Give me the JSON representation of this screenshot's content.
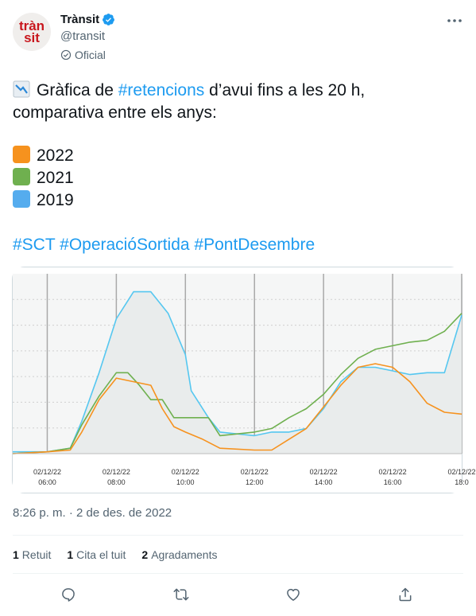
{
  "author": {
    "avatar_text_line1": "tràn",
    "avatar_text_line2": "sit",
    "display_name": "Trànsit",
    "handle": "@transit",
    "badge": "Oficial"
  },
  "tweet": {
    "line1_prefix": "Gràfica de ",
    "line1_hashtag": "#retencions",
    "line1_suffix": " d’avui fins a les 20 h,",
    "line2": "comparativa entre els anys:",
    "legend": [
      {
        "label": "2022",
        "color": "#f6921e"
      },
      {
        "label": "2021",
        "color": "#6fb04f"
      },
      {
        "label": "2019",
        "color": "#55acee"
      }
    ],
    "hashtags": "#SCT #OperacióSortida #PontDesembre"
  },
  "chart_data": {
    "type": "line",
    "x_tick_labels": [
      [
        "02/12/22",
        "06:00"
      ],
      [
        "02/12/22",
        "08:00"
      ],
      [
        "02/12/22",
        "10:00"
      ],
      [
        "02/12/22",
        "12:00"
      ],
      [
        "02/12/22",
        "14:00"
      ],
      [
        "02/12/22",
        "16:00"
      ],
      [
        "02/12/22",
        "18:0"
      ]
    ],
    "xlim": [
      "05:00",
      "18:00"
    ],
    "ylim": [
      0,
      100
    ],
    "grid": true,
    "series": [
      {
        "color": "#55c7f0",
        "points": [
          [
            "05:00",
            1
          ],
          [
            "06:00",
            1
          ],
          [
            "06:40",
            3
          ],
          [
            "07:00",
            18
          ],
          [
            "07:30",
            45
          ],
          [
            "08:00",
            75
          ],
          [
            "08:30",
            90
          ],
          [
            "09:00",
            90
          ],
          [
            "09:30",
            78
          ],
          [
            "10:00",
            55
          ],
          [
            "10:10",
            35
          ],
          [
            "10:40",
            20
          ],
          [
            "11:00",
            12
          ],
          [
            "12:00",
            10
          ],
          [
            "12:30",
            12
          ],
          [
            "13:00",
            12
          ],
          [
            "13:30",
            14
          ],
          [
            "14:00",
            25
          ],
          [
            "14:30",
            40
          ],
          [
            "15:00",
            48
          ],
          [
            "15:30",
            48
          ],
          [
            "16:00",
            46
          ],
          [
            "16:30",
            44
          ],
          [
            "17:00",
            45
          ],
          [
            "17:30",
            45
          ],
          [
            "18:00",
            77
          ]
        ]
      },
      {
        "color": "#6fb04f",
        "points": [
          [
            "05:00",
            0
          ],
          [
            "06:00",
            1
          ],
          [
            "06:40",
            3
          ],
          [
            "07:00",
            16
          ],
          [
            "07:30",
            32
          ],
          [
            "08:00",
            45
          ],
          [
            "08:20",
            45
          ],
          [
            "08:40",
            38
          ],
          [
            "09:00",
            30
          ],
          [
            "09:20",
            30
          ],
          [
            "09:40",
            20
          ],
          [
            "10:00",
            20
          ],
          [
            "10:40",
            20
          ],
          [
            "11:00",
            10
          ],
          [
            "12:00",
            12
          ],
          [
            "12:30",
            14
          ],
          [
            "13:00",
            20
          ],
          [
            "13:30",
            25
          ],
          [
            "14:00",
            33
          ],
          [
            "14:30",
            44
          ],
          [
            "15:00",
            53
          ],
          [
            "15:30",
            58
          ],
          [
            "16:00",
            60
          ],
          [
            "16:30",
            62
          ],
          [
            "17:00",
            63
          ],
          [
            "17:30",
            68
          ],
          [
            "18:00",
            78
          ]
        ]
      },
      {
        "color": "#f6921e",
        "points": [
          [
            "05:00",
            0
          ],
          [
            "06:00",
            1
          ],
          [
            "06:40",
            2
          ],
          [
            "07:00",
            12
          ],
          [
            "07:30",
            30
          ],
          [
            "08:00",
            42
          ],
          [
            "08:30",
            40
          ],
          [
            "09:00",
            38
          ],
          [
            "09:20",
            25
          ],
          [
            "09:40",
            15
          ],
          [
            "10:00",
            12
          ],
          [
            "10:30",
            8
          ],
          [
            "11:00",
            3
          ],
          [
            "12:00",
            2
          ],
          [
            "12:30",
            2
          ],
          [
            "13:00",
            8
          ],
          [
            "13:30",
            14
          ],
          [
            "14:00",
            26
          ],
          [
            "14:30",
            38
          ],
          [
            "15:00",
            48
          ],
          [
            "15:30",
            50
          ],
          [
            "16:00",
            48
          ],
          [
            "16:30",
            40
          ],
          [
            "17:00",
            28
          ],
          [
            "17:30",
            23
          ],
          [
            "18:00",
            22
          ]
        ]
      }
    ]
  },
  "timestamp": "8:26 p. m. · 2 de des. de 2022",
  "stats": [
    {
      "count": "1",
      "label": "Retuit"
    },
    {
      "count": "1",
      "label": "Cita el tuit"
    },
    {
      "count": "2",
      "label": "Agradaments"
    }
  ]
}
